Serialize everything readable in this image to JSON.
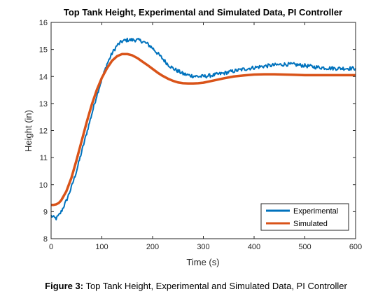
{
  "figure": {
    "caption_label": "Figure 3:",
    "caption_text": " Top Tank Height, Experimental and Simulated Data, PI Controller"
  },
  "chart_data": {
    "type": "line",
    "title": "Top Tank Height, Experimental and Simulated Data, PI Controller",
    "xlabel": "Time (s)",
    "ylabel": "Height (in)",
    "xlim": [
      0,
      600
    ],
    "ylim": [
      8,
      16
    ],
    "xticks": [
      0,
      100,
      200,
      300,
      400,
      500,
      600
    ],
    "yticks": [
      8,
      9,
      10,
      11,
      12,
      13,
      14,
      15,
      16
    ],
    "grid": false,
    "legend_position": "bottom-right",
    "series": [
      {
        "name": "Experimental",
        "color": "#0072BD",
        "x": [
          0,
          5,
          10,
          15,
          20,
          30,
          40,
          50,
          60,
          70,
          80,
          90,
          100,
          110,
          120,
          130,
          140,
          150,
          160,
          170,
          180,
          190,
          200,
          210,
          220,
          230,
          240,
          250,
          260,
          270,
          280,
          290,
          300,
          320,
          340,
          360,
          380,
          400,
          420,
          440,
          460,
          480,
          500,
          520,
          540,
          560,
          580,
          600
        ],
        "y": [
          8.85,
          8.78,
          8.75,
          8.85,
          9.0,
          9.4,
          9.9,
          10.5,
          11.2,
          11.9,
          12.6,
          13.3,
          13.9,
          14.45,
          14.85,
          15.15,
          15.3,
          15.35,
          15.35,
          15.35,
          15.3,
          15.2,
          15.05,
          14.85,
          14.65,
          14.45,
          14.3,
          14.2,
          14.1,
          14.05,
          14.02,
          14.0,
          14.0,
          14.05,
          14.12,
          14.2,
          14.27,
          14.33,
          14.38,
          14.42,
          14.45,
          14.44,
          14.4,
          14.35,
          14.32,
          14.3,
          14.3,
          14.3
        ]
      },
      {
        "name": "Simulated",
        "color": "#D95319",
        "x": [
          0,
          5,
          10,
          15,
          20,
          30,
          40,
          50,
          60,
          70,
          80,
          90,
          100,
          110,
          120,
          130,
          140,
          150,
          160,
          170,
          180,
          190,
          200,
          210,
          220,
          230,
          240,
          250,
          260,
          270,
          280,
          290,
          300,
          320,
          340,
          360,
          380,
          400,
          420,
          440,
          460,
          480,
          500,
          520,
          540,
          560,
          580,
          600
        ],
        "y": [
          9.25,
          9.25,
          9.27,
          9.32,
          9.42,
          9.75,
          10.25,
          10.9,
          11.6,
          12.3,
          12.95,
          13.5,
          13.95,
          14.3,
          14.58,
          14.75,
          14.83,
          14.83,
          14.78,
          14.68,
          14.55,
          14.42,
          14.28,
          14.14,
          14.02,
          13.92,
          13.84,
          13.78,
          13.75,
          13.74,
          13.74,
          13.75,
          13.77,
          13.85,
          13.93,
          14.0,
          14.04,
          14.07,
          14.08,
          14.08,
          14.07,
          14.06,
          14.05,
          14.05,
          14.05,
          14.05,
          14.05,
          14.05
        ]
      }
    ]
  }
}
